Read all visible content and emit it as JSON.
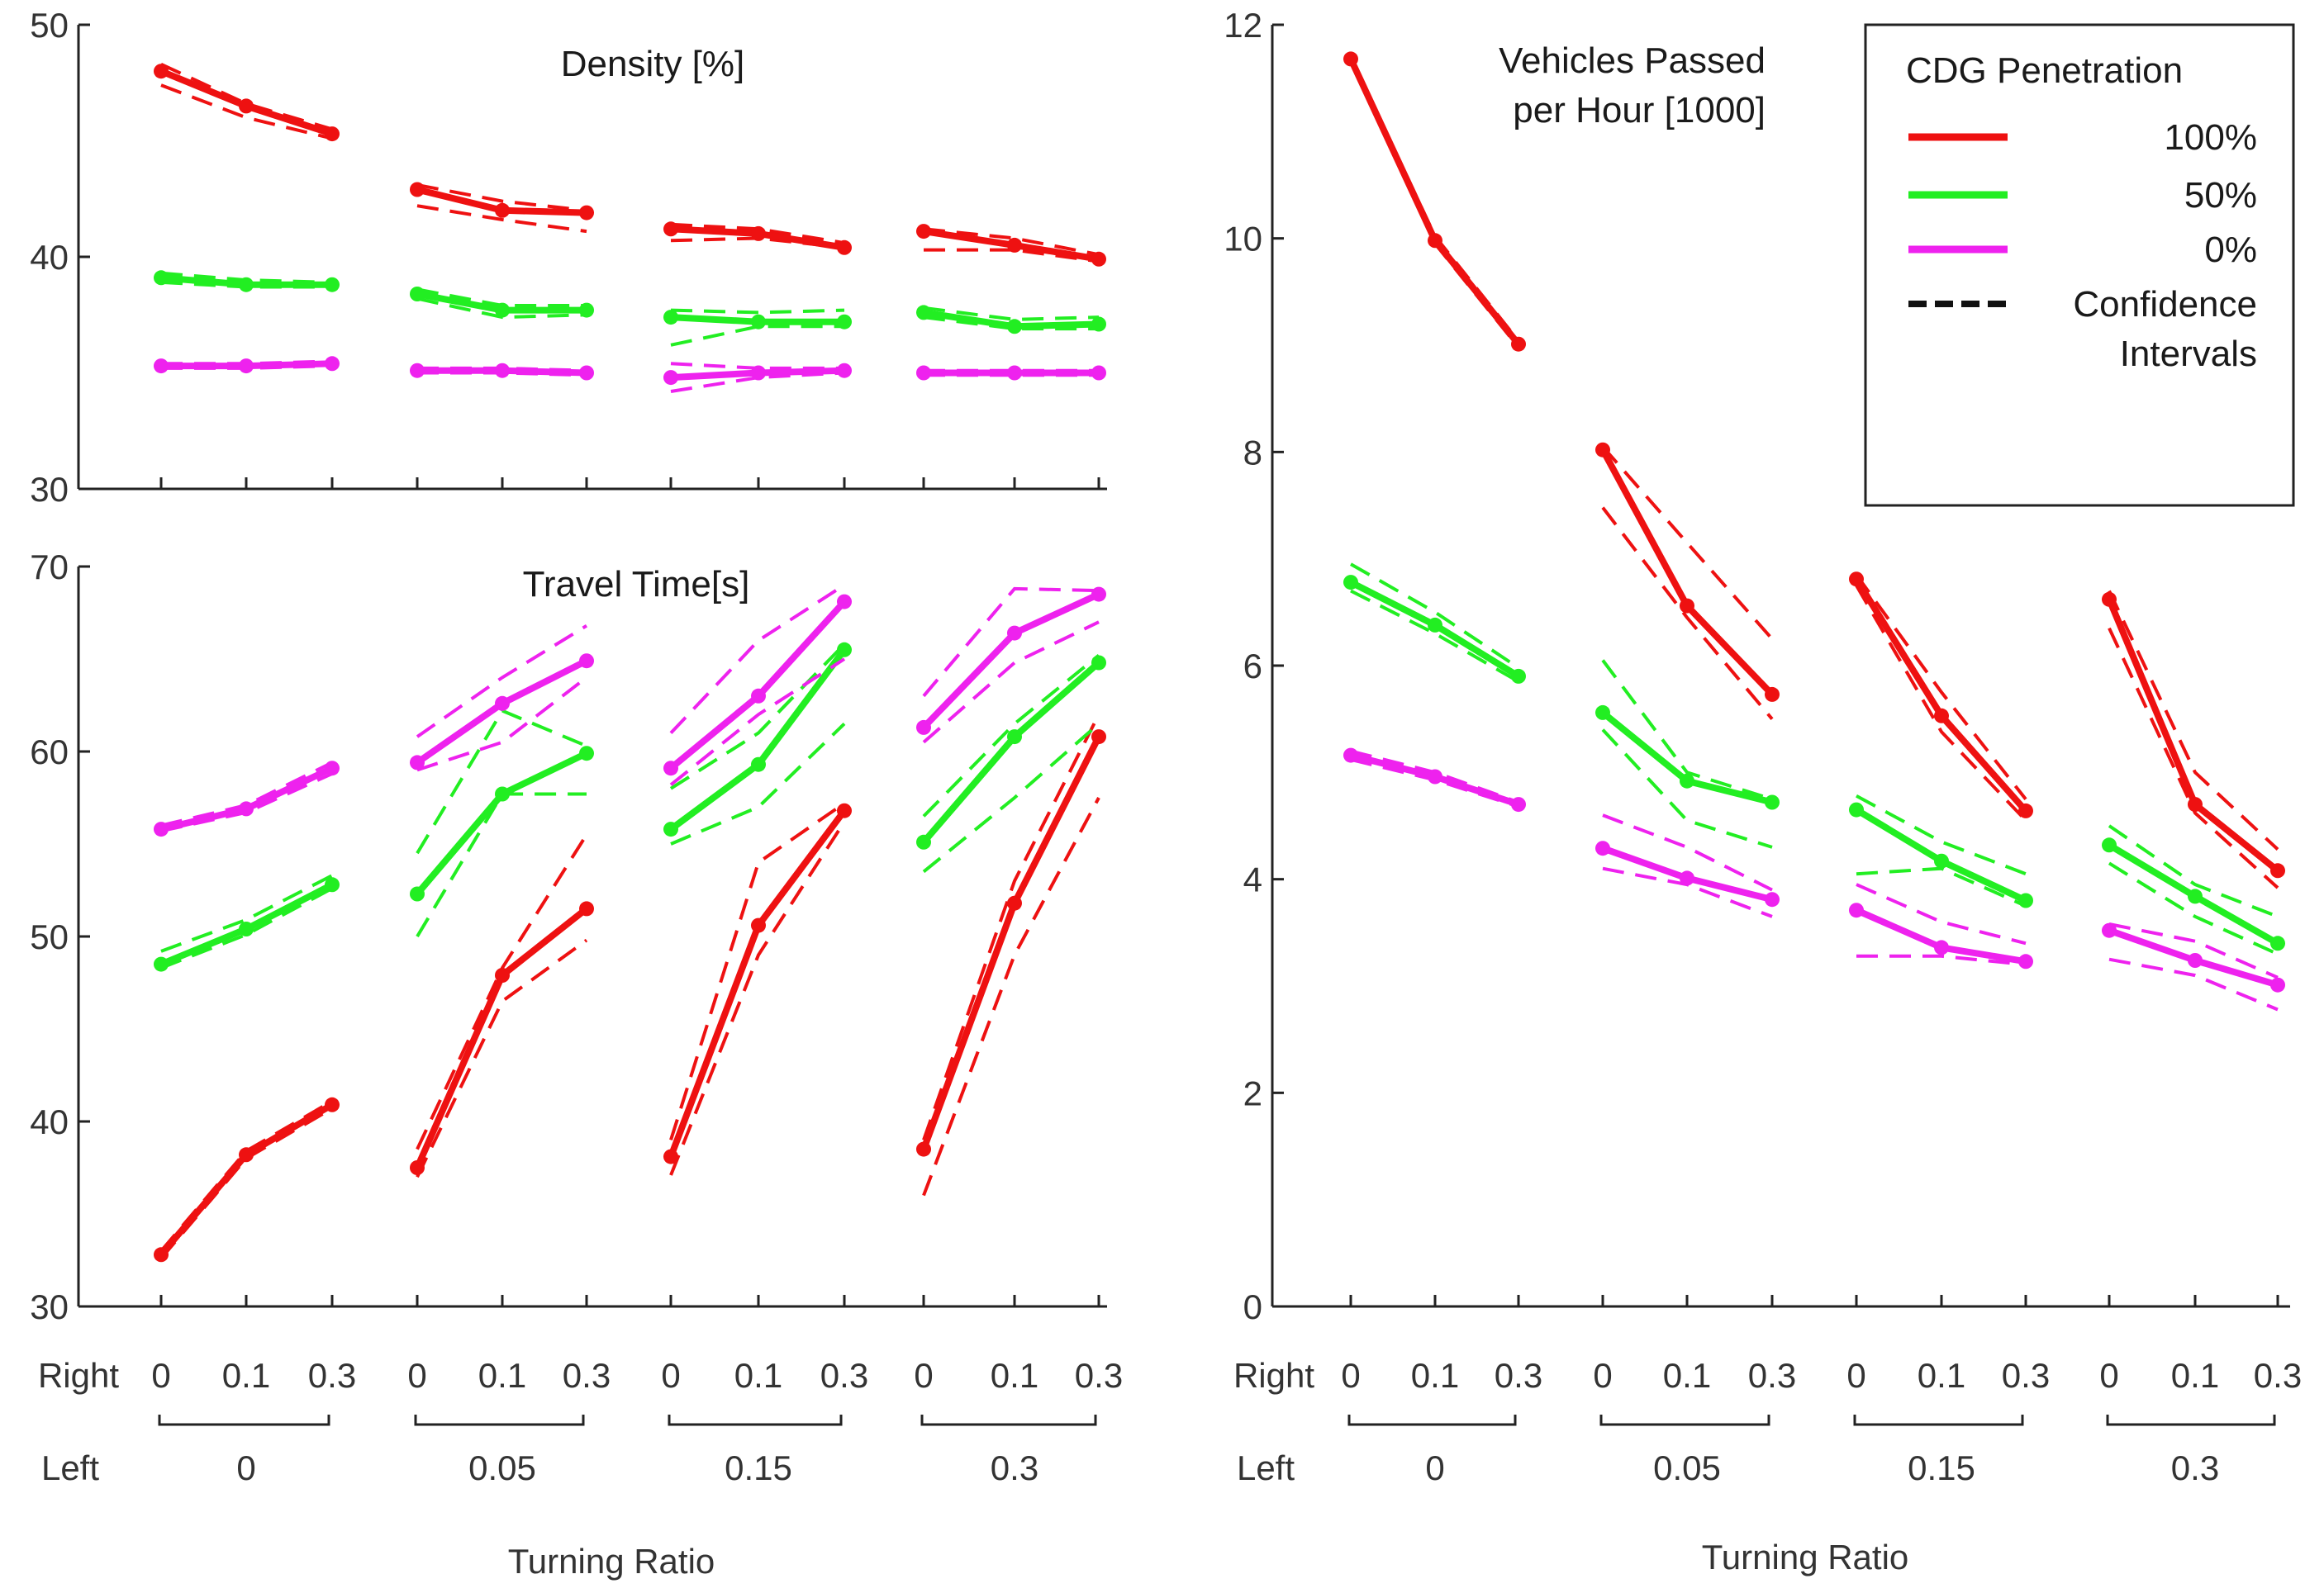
{
  "chart_data": [
    {
      "id": "density",
      "type": "line",
      "title": "Density [%]",
      "ylim": [
        30,
        50
      ],
      "yticks": [
        "30",
        "40",
        "50"
      ],
      "right_label": "Right",
      "left_label": "Left",
      "right_ticks": [
        "0",
        "0.1",
        "0.3"
      ],
      "left_groups": [
        "0",
        "0.05",
        "0.15",
        "0.3"
      ],
      "xlabel": "Turning Ratio",
      "series": [
        {
          "name": "100%",
          "color": "#ee1111",
          "values": [
            [
              48.0,
              46.5,
              45.3
            ],
            [
              42.9,
              42.0,
              41.9
            ],
            [
              41.2,
              41.0,
              40.4
            ],
            [
              41.1,
              40.5,
              39.9
            ]
          ],
          "ci_low": [
            [
              47.4,
              46.0,
              45.1
            ],
            [
              42.2,
              41.6,
              41.1
            ],
            [
              40.7,
              40.8,
              40.4
            ],
            [
              40.3,
              40.3,
              39.8
            ]
          ],
          "ci_high": [
            [
              48.3,
              46.6,
              45.5
            ],
            [
              43.1,
              42.4,
              42.0
            ],
            [
              41.4,
              41.2,
              40.6
            ],
            [
              41.2,
              40.8,
              40.1
            ]
          ]
        },
        {
          "name": "50%",
          "color": "#22ee22",
          "values": [
            [
              39.1,
              38.8,
              38.8
            ],
            [
              38.4,
              37.7,
              37.7
            ],
            [
              37.4,
              37.2,
              37.2
            ],
            [
              37.6,
              37.0,
              37.1
            ]
          ],
          "ci_low": [
            [
              38.9,
              38.7,
              38.7
            ],
            [
              38.2,
              37.4,
              37.5
            ],
            [
              36.2,
              37.0,
              37.0
            ],
            [
              37.4,
              36.9,
              36.9
            ]
          ],
          "ci_high": [
            [
              39.3,
              39.0,
              38.9
            ],
            [
              38.6,
              37.9,
              37.9
            ],
            [
              37.7,
              37.6,
              37.7
            ],
            [
              37.8,
              37.3,
              37.4
            ]
          ]
        },
        {
          "name": "0%",
          "color": "#ee22ee",
          "values": [
            [
              35.3,
              35.3,
              35.4
            ],
            [
              35.1,
              35.1,
              35.0
            ],
            [
              34.8,
              35.0,
              35.1
            ],
            [
              35.0,
              35.0,
              35.0
            ]
          ],
          "ci_low": [
            [
              35.2,
              35.2,
              35.3
            ],
            [
              35.0,
              35.0,
              34.9
            ],
            [
              34.2,
              34.8,
              35.0
            ],
            [
              34.9,
              34.9,
              34.9
            ]
          ],
          "ci_high": [
            [
              35.4,
              35.4,
              35.5
            ],
            [
              35.2,
              35.2,
              35.1
            ],
            [
              35.4,
              35.2,
              35.2
            ],
            [
              35.1,
              35.1,
              35.1
            ]
          ]
        }
      ]
    },
    {
      "id": "travel",
      "type": "line",
      "title": "Travel Time[s]",
      "ylim": [
        30,
        70
      ],
      "yticks": [
        "30",
        "40",
        "50",
        "60",
        "70"
      ],
      "right_label": "Right",
      "left_label": "Left",
      "right_ticks": [
        "0",
        "0.1",
        "0.3"
      ],
      "left_groups": [
        "0",
        "0.05",
        "0.15",
        "0.3"
      ],
      "xlabel": "Turning Ratio",
      "series": [
        {
          "name": "100%",
          "color": "#ee1111",
          "values": [
            [
              32.8,
              38.2,
              40.9
            ],
            [
              37.5,
              47.9,
              51.5
            ],
            [
              38.1,
              50.6,
              56.8
            ],
            [
              38.5,
              51.8,
              60.8
            ]
          ],
          "ci_low": [
            [
              32.6,
              38.0,
              40.7
            ],
            [
              37.0,
              46.5,
              49.8
            ],
            [
              37.1,
              49.0,
              56.2
            ],
            [
              36.0,
              49.0,
              57.5
            ]
          ],
          "ci_high": [
            [
              33.0,
              38.4,
              41.1
            ],
            [
              38.5,
              48.3,
              55.5
            ],
            [
              39.0,
              54.0,
              57.2
            ],
            [
              39.0,
              53.0,
              62.0
            ]
          ]
        },
        {
          "name": "50%",
          "color": "#22ee22",
          "values": [
            [
              48.5,
              50.4,
              52.8
            ],
            [
              52.3,
              57.7,
              59.9
            ],
            [
              55.8,
              59.3,
              65.5
            ],
            [
              55.1,
              60.8,
              64.8
            ]
          ],
          "ci_low": [
            [
              48.3,
              50.1,
              52.6
            ],
            [
              50.0,
              57.7,
              57.7
            ],
            [
              55.0,
              57.0,
              61.5
            ],
            [
              53.5,
              57.5,
              61.5
            ]
          ],
          "ci_high": [
            [
              49.2,
              50.9,
              53.3
            ],
            [
              54.5,
              62.2,
              60.3
            ],
            [
              58.0,
              61.0,
              65.8
            ],
            [
              56.5,
              61.5,
              65.2
            ]
          ]
        },
        {
          "name": "0%",
          "color": "#ee22ee",
          "values": [
            [
              55.8,
              56.9,
              59.1
            ],
            [
              59.4,
              62.6,
              64.9
            ],
            [
              59.1,
              63.0,
              68.1
            ],
            [
              61.3,
              66.4,
              68.5
            ]
          ],
          "ci_low": [
            [
              55.7,
              56.7,
              58.8
            ],
            [
              59.0,
              60.5,
              64.0
            ],
            [
              58.2,
              62.0,
              65.0
            ],
            [
              60.5,
              64.8,
              67.0
            ]
          ],
          "ci_high": [
            [
              56.0,
              57.1,
              59.4
            ],
            [
              60.8,
              64.0,
              66.8
            ],
            [
              61.0,
              66.0,
              69.0
            ],
            [
              63.0,
              68.8,
              68.7
            ]
          ]
        }
      ]
    },
    {
      "id": "vehicles",
      "type": "line",
      "title": "Vehicles Passed",
      "title2": "per Hour [1000]",
      "ylim": [
        0,
        12
      ],
      "yticks": [
        "0",
        "2",
        "4",
        "6",
        "8",
        "10",
        "12"
      ],
      "right_label": "Right",
      "left_label": "Left",
      "right_ticks": [
        "0",
        "0.1",
        "0.3"
      ],
      "left_groups": [
        "0",
        "0.05",
        "0.15",
        "0.3"
      ],
      "xlabel": "Turning Ratio",
      "series": [
        {
          "name": "100%",
          "color": "#ee1111",
          "values": [
            [
              11.68,
              9.98,
              9.01
            ],
            [
              8.02,
              6.56,
              5.73
            ],
            [
              6.81,
              5.53,
              4.64
            ],
            [
              6.62,
              4.7,
              4.08
            ]
          ],
          "ci_low": [
            [
              11.65,
              9.95,
              8.98
            ],
            [
              7.48,
              6.45,
              5.5
            ],
            [
              6.75,
              5.38,
              4.55
            ],
            [
              6.35,
              4.62,
              3.92
            ]
          ],
          "ci_high": [
            [
              11.7,
              10.02,
              9.04
            ],
            [
              8.05,
              7.15,
              6.25
            ],
            [
              6.85,
              5.75,
              4.75
            ],
            [
              6.7,
              5.0,
              4.28
            ]
          ]
        },
        {
          "name": "50%",
          "color": "#22ee22",
          "values": [
            [
              6.78,
              6.38,
              5.9
            ],
            [
              5.56,
              4.92,
              4.72
            ],
            [
              4.65,
              4.17,
              3.8
            ],
            [
              4.32,
              3.84,
              3.4
            ]
          ],
          "ci_low": [
            [
              6.7,
              6.3,
              5.85
            ],
            [
              5.4,
              4.55,
              4.3
            ],
            [
              4.05,
              4.1,
              3.75
            ],
            [
              4.15,
              3.65,
              3.3
            ]
          ],
          "ci_high": [
            [
              6.95,
              6.5,
              5.98
            ],
            [
              6.05,
              5.0,
              4.75
            ],
            [
              4.78,
              4.35,
              4.05
            ],
            [
              4.5,
              3.95,
              3.65
            ]
          ]
        },
        {
          "name": "0%",
          "color": "#ee22ee",
          "values": [
            [
              5.16,
              4.96,
              4.7
            ],
            [
              4.29,
              4.01,
              3.81
            ],
            [
              3.71,
              3.36,
              3.23
            ],
            [
              3.52,
              3.24,
              3.01
            ]
          ],
          "ci_low": [
            [
              5.12,
              4.93,
              4.68
            ],
            [
              4.1,
              3.95,
              3.65
            ],
            [
              3.28,
              3.28,
              3.2
            ],
            [
              3.25,
              3.1,
              2.78
            ]
          ],
          "ci_high": [
            [
              5.2,
              5.0,
              4.72
            ],
            [
              4.6,
              4.3,
              3.9
            ],
            [
              3.95,
              3.6,
              3.4
            ],
            [
              3.58,
              3.42,
              3.08
            ]
          ]
        }
      ]
    }
  ],
  "legend": {
    "title": "CDG Penetration",
    "items": [
      {
        "label": "100%",
        "color": "#ee1111",
        "style": "solid"
      },
      {
        "label": "50%",
        "color": "#22ee22",
        "style": "solid"
      },
      {
        "label": "0%",
        "color": "#ee22ee",
        "style": "solid"
      },
      {
        "label": "Confidence",
        "label2": "Intervals",
        "color": "#111111",
        "style": "dashed"
      }
    ]
  }
}
